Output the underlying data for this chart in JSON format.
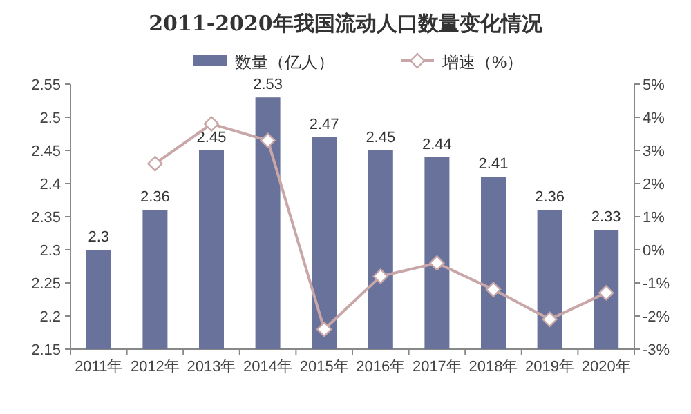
{
  "chart_data": {
    "type": "bar",
    "title": "2011-2020年我国流动人口数量变化情况",
    "categories": [
      "2011年",
      "2012年",
      "2013年",
      "2014年",
      "2015年",
      "2016年",
      "2017年",
      "2018年",
      "2019年",
      "2020年"
    ],
    "series": [
      {
        "name": "数量（亿人）",
        "color": "#68729b",
        "values": [
          2.3,
          2.36,
          2.45,
          2.53,
          2.47,
          2.45,
          2.44,
          2.41,
          2.36,
          2.33
        ],
        "value_labels": [
          "2.3",
          "2.36",
          "2.45",
          "2.53",
          "2.47",
          "2.45",
          "2.44",
          "2.41",
          "2.36",
          "2.33"
        ]
      },
      {
        "name": "增速（%）",
        "type": "line",
        "axis": "y2",
        "color": "#c9a7a9",
        "marker": "diamond",
        "values": [
          null,
          2.6,
          3.8,
          3.3,
          -2.4,
          -0.8,
          -0.4,
          -1.2,
          -2.1,
          -1.3
        ]
      }
    ],
    "ylim": [
      2.15,
      2.55
    ],
    "yticks": [
      2.15,
      2.2,
      2.25,
      2.3,
      2.35,
      2.4,
      2.45,
      2.5,
      2.55
    ],
    "y2lim": [
      -3,
      5
    ],
    "y2ticks": [
      {
        "value": -3,
        "label": "-3%"
      },
      {
        "value": -2,
        "label": "-2%"
      },
      {
        "value": -1,
        "label": "-1%"
      },
      {
        "value": 0,
        "label": "0%"
      },
      {
        "value": 1,
        "label": "1%"
      },
      {
        "value": 2,
        "label": "2%"
      },
      {
        "value": 3,
        "label": "3%"
      },
      {
        "value": 4,
        "label": "4%"
      },
      {
        "value": 5,
        "label": "5%"
      }
    ],
    "legend": "top",
    "grid": false
  }
}
